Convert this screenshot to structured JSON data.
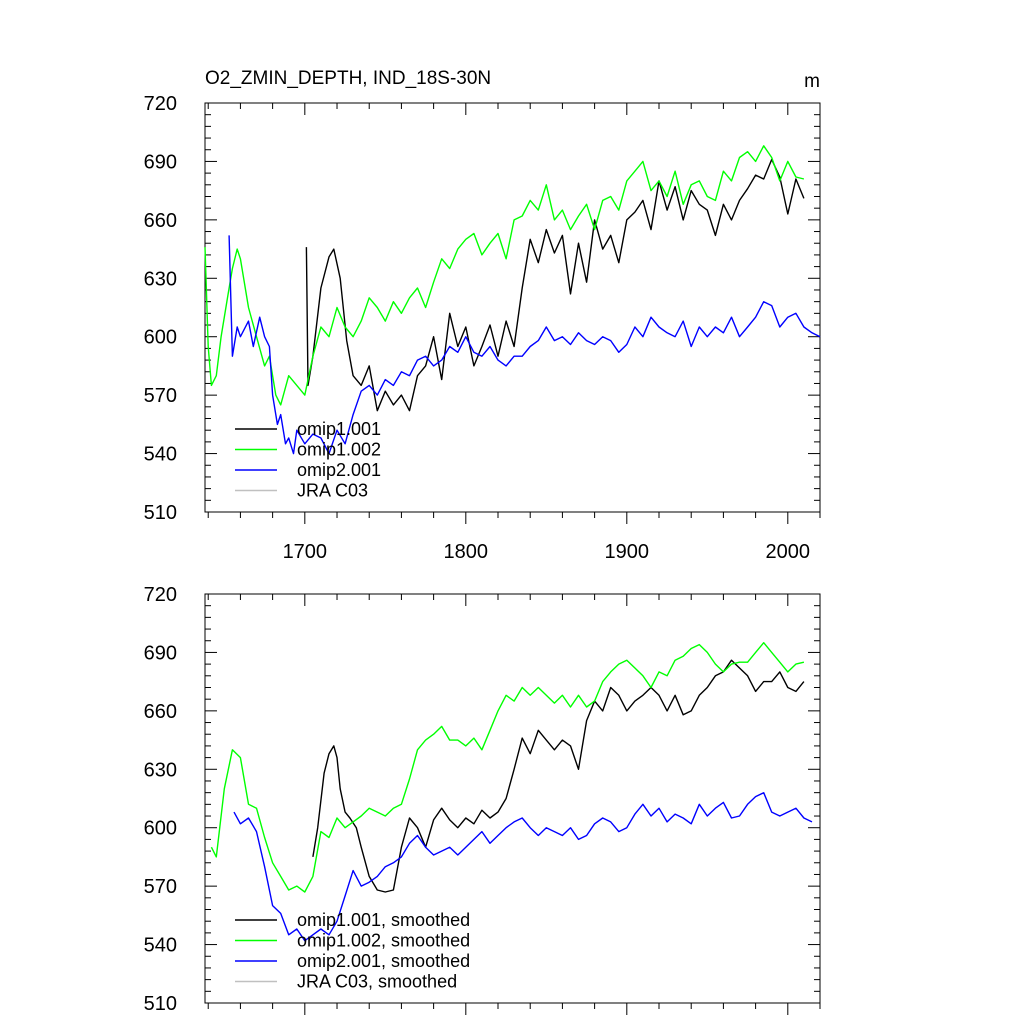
{
  "figure": {
    "title": "O2_ZMIN_DEPTH, IND_18S-30N",
    "units": "m"
  },
  "chart_data": [
    {
      "type": "line",
      "panel": "top",
      "title": "O2_ZMIN_DEPTH, IND_18S-30N",
      "units": "m",
      "xlim": [
        1638,
        2020
      ],
      "ylim": [
        510,
        720
      ],
      "xticks": [
        1700,
        1800,
        1900,
        2000
      ],
      "yticks": [
        510,
        540,
        570,
        600,
        630,
        660,
        690,
        720
      ],
      "show_x_tick_labels": true,
      "grid": false,
      "legend": "bottom-left",
      "series": [
        {
          "name": "omip1.001",
          "color": "#000000",
          "x": [
            1701,
            1702,
            1705,
            1710,
            1715,
            1718,
            1722,
            1726,
            1730,
            1735,
            1740,
            1745,
            1750,
            1755,
            1760,
            1765,
            1770,
            1775,
            1780,
            1785,
            1790,
            1795,
            1800,
            1805,
            1810,
            1815,
            1820,
            1825,
            1830,
            1835,
            1840,
            1845,
            1850,
            1855,
            1860,
            1865,
            1870,
            1875,
            1880,
            1885,
            1890,
            1895,
            1900,
            1905,
            1910,
            1915,
            1920,
            1925,
            1930,
            1935,
            1940,
            1945,
            1950,
            1955,
            1960,
            1965,
            1970,
            1975,
            1980,
            1985,
            1990,
            1995,
            2000,
            2005,
            2010
          ],
          "y": [
            646,
            575,
            590,
            625,
            641,
            645,
            630,
            598,
            580,
            575,
            585,
            562,
            572,
            565,
            570,
            562,
            580,
            585,
            600,
            578,
            612,
            595,
            605,
            585,
            595,
            606,
            590,
            608,
            595,
            625,
            650,
            638,
            655,
            643,
            652,
            622,
            648,
            628,
            660,
            645,
            652,
            638,
            660,
            664,
            670,
            655,
            680,
            665,
            677,
            660,
            675,
            668,
            665,
            652,
            668,
            660,
            670,
            676,
            683,
            681,
            691,
            682,
            663,
            681,
            671
          ]
        },
        {
          "name": "omip1.002",
          "color": "#00ff00",
          "x": [
            1638,
            1640,
            1642,
            1645,
            1648,
            1652,
            1655,
            1658,
            1660,
            1665,
            1670,
            1675,
            1678,
            1682,
            1685,
            1690,
            1695,
            1700,
            1705,
            1710,
            1715,
            1720,
            1725,
            1730,
            1735,
            1740,
            1745,
            1750,
            1755,
            1760,
            1765,
            1770,
            1775,
            1780,
            1785,
            1790,
            1795,
            1800,
            1805,
            1810,
            1815,
            1820,
            1825,
            1830,
            1835,
            1840,
            1845,
            1850,
            1855,
            1860,
            1865,
            1870,
            1875,
            1880,
            1885,
            1890,
            1895,
            1900,
            1905,
            1910,
            1915,
            1920,
            1925,
            1930,
            1935,
            1940,
            1945,
            1950,
            1955,
            1960,
            1965,
            1970,
            1975,
            1980,
            1985,
            1990,
            1995,
            2000,
            2005,
            2010
          ],
          "y": [
            646,
            595,
            575,
            580,
            600,
            620,
            635,
            645,
            640,
            615,
            600,
            585,
            590,
            570,
            565,
            580,
            575,
            570,
            590,
            605,
            600,
            615,
            605,
            600,
            608,
            620,
            615,
            608,
            618,
            612,
            620,
            625,
            615,
            628,
            640,
            635,
            645,
            650,
            653,
            642,
            648,
            653,
            640,
            660,
            662,
            670,
            665,
            678,
            660,
            665,
            655,
            662,
            668,
            655,
            670,
            672,
            665,
            680,
            685,
            690,
            675,
            680,
            672,
            685,
            668,
            678,
            680,
            672,
            670,
            685,
            680,
            692,
            695,
            690,
            698,
            692,
            680,
            690,
            682,
            681
          ]
        },
        {
          "name": "omip2.001",
          "color": "#0000ff",
          "x": [
            1653,
            1655,
            1658,
            1660,
            1665,
            1668,
            1672,
            1675,
            1678,
            1680,
            1683,
            1685,
            1688,
            1690,
            1693,
            1695,
            1700,
            1705,
            1710,
            1715,
            1720,
            1725,
            1730,
            1735,
            1740,
            1745,
            1750,
            1755,
            1760,
            1765,
            1770,
            1775,
            1780,
            1785,
            1790,
            1795,
            1800,
            1805,
            1810,
            1815,
            1820,
            1825,
            1830,
            1835,
            1840,
            1845,
            1850,
            1855,
            1860,
            1865,
            1870,
            1875,
            1880,
            1885,
            1890,
            1895,
            1900,
            1905,
            1910,
            1915,
            1920,
            1925,
            1930,
            1935,
            1940,
            1945,
            1950,
            1955,
            1960,
            1965,
            1970,
            1975,
            1980,
            1985,
            1990,
            1995,
            2000,
            2005,
            2010,
            2015,
            2020
          ],
          "y": [
            652,
            590,
            605,
            600,
            608,
            595,
            610,
            600,
            595,
            570,
            555,
            560,
            545,
            548,
            540,
            552,
            545,
            550,
            548,
            540,
            552,
            545,
            560,
            572,
            575,
            570,
            578,
            575,
            582,
            580,
            588,
            590,
            585,
            588,
            595,
            592,
            600,
            592,
            590,
            595,
            588,
            585,
            590,
            590,
            595,
            598,
            605,
            598,
            600,
            596,
            602,
            598,
            596,
            600,
            598,
            592,
            596,
            605,
            600,
            610,
            605,
            602,
            600,
            608,
            595,
            605,
            600,
            605,
            602,
            610,
            600,
            605,
            610,
            618,
            616,
            605,
            610,
            612,
            605,
            602,
            600
          ]
        },
        {
          "name": "JRA C03",
          "color": "#c0c0c0",
          "x": [],
          "y": []
        }
      ]
    },
    {
      "type": "line",
      "panel": "bottom",
      "xlim": [
        1638,
        2020
      ],
      "ylim": [
        510,
        720
      ],
      "xticks": [
        1700,
        1800,
        1900,
        2000
      ],
      "yticks": [
        510,
        540,
        570,
        600,
        630,
        660,
        690,
        720
      ],
      "show_x_tick_labels": false,
      "grid": false,
      "legend": "bottom-left",
      "series": [
        {
          "name": "omip1.001, smoothed",
          "color": "#000000",
          "x": [
            1705,
            1708,
            1712,
            1715,
            1718,
            1720,
            1722,
            1725,
            1728,
            1732,
            1735,
            1740,
            1745,
            1750,
            1755,
            1760,
            1765,
            1770,
            1775,
            1780,
            1785,
            1790,
            1795,
            1800,
            1805,
            1810,
            1815,
            1820,
            1825,
            1830,
            1835,
            1840,
            1845,
            1850,
            1855,
            1860,
            1865,
            1870,
            1875,
            1880,
            1885,
            1890,
            1895,
            1900,
            1905,
            1910,
            1915,
            1920,
            1925,
            1930,
            1935,
            1940,
            1945,
            1950,
            1955,
            1960,
            1965,
            1970,
            1975,
            1980,
            1985,
            1990,
            1995,
            2000,
            2005,
            2010
          ],
          "y": [
            585,
            600,
            628,
            638,
            642,
            636,
            620,
            608,
            605,
            600,
            590,
            575,
            568,
            567,
            568,
            590,
            605,
            600,
            590,
            604,
            610,
            604,
            600,
            605,
            602,
            609,
            605,
            608,
            615,
            630,
            646,
            638,
            650,
            645,
            640,
            645,
            642,
            630,
            655,
            665,
            660,
            672,
            668,
            660,
            665,
            668,
            672,
            668,
            660,
            668,
            658,
            660,
            668,
            672,
            678,
            680,
            686,
            682,
            678,
            670,
            675,
            675,
            680,
            672,
            670,
            675
          ]
        },
        {
          "name": "omip1.002, smoothed",
          "color": "#00ff00",
          "x": [
            1642,
            1645,
            1650,
            1655,
            1660,
            1665,
            1670,
            1675,
            1680,
            1685,
            1690,
            1695,
            1700,
            1705,
            1710,
            1715,
            1720,
            1725,
            1730,
            1735,
            1740,
            1745,
            1750,
            1755,
            1760,
            1765,
            1770,
            1775,
            1780,
            1785,
            1790,
            1795,
            1800,
            1805,
            1810,
            1815,
            1820,
            1825,
            1830,
            1835,
            1840,
            1845,
            1850,
            1855,
            1860,
            1865,
            1870,
            1875,
            1880,
            1885,
            1890,
            1895,
            1900,
            1905,
            1910,
            1915,
            1920,
            1925,
            1930,
            1935,
            1940,
            1945,
            1950,
            1955,
            1960,
            1965,
            1970,
            1975,
            1980,
            1985,
            1990,
            1995,
            2000,
            2005,
            2010
          ],
          "y": [
            590,
            585,
            620,
            640,
            636,
            612,
            610,
            595,
            582,
            575,
            568,
            570,
            567,
            575,
            598,
            595,
            605,
            600,
            603,
            606,
            610,
            608,
            606,
            610,
            612,
            625,
            640,
            645,
            648,
            652,
            645,
            645,
            642,
            646,
            640,
            650,
            660,
            668,
            665,
            672,
            668,
            672,
            668,
            664,
            668,
            662,
            668,
            662,
            665,
            675,
            680,
            684,
            686,
            682,
            678,
            672,
            680,
            678,
            686,
            688,
            692,
            694,
            690,
            684,
            680,
            684,
            685,
            685,
            690,
            695,
            690,
            685,
            680,
            684,
            685
          ]
        },
        {
          "name": "omip2.001, smoothed",
          "color": "#0000ff",
          "x": [
            1656,
            1660,
            1665,
            1670,
            1675,
            1680,
            1685,
            1690,
            1695,
            1700,
            1705,
            1710,
            1715,
            1720,
            1725,
            1730,
            1735,
            1740,
            1745,
            1750,
            1755,
            1760,
            1765,
            1770,
            1775,
            1780,
            1785,
            1790,
            1795,
            1800,
            1805,
            1810,
            1815,
            1820,
            1825,
            1830,
            1835,
            1840,
            1845,
            1850,
            1855,
            1860,
            1865,
            1870,
            1875,
            1880,
            1885,
            1890,
            1895,
            1900,
            1905,
            1910,
            1915,
            1920,
            1925,
            1930,
            1935,
            1940,
            1945,
            1950,
            1955,
            1960,
            1965,
            1970,
            1975,
            1980,
            1985,
            1990,
            1995,
            2000,
            2005,
            2010,
            2015
          ],
          "y": [
            608,
            602,
            605,
            598,
            580,
            560,
            556,
            545,
            548,
            542,
            545,
            548,
            545,
            552,
            565,
            578,
            570,
            572,
            575,
            580,
            582,
            585,
            592,
            596,
            590,
            586,
            588,
            590,
            586,
            590,
            594,
            598,
            592,
            596,
            600,
            603,
            605,
            600,
            596,
            600,
            598,
            596,
            600,
            594,
            596,
            602,
            605,
            603,
            598,
            600,
            607,
            612,
            606,
            610,
            603,
            607,
            605,
            602,
            612,
            606,
            610,
            613,
            605,
            606,
            612,
            616,
            618,
            608,
            606,
            608,
            610,
            605,
            603
          ]
        },
        {
          "name": "JRA C03, smoothed",
          "color": "#c0c0c0",
          "x": [],
          "y": []
        }
      ]
    }
  ]
}
